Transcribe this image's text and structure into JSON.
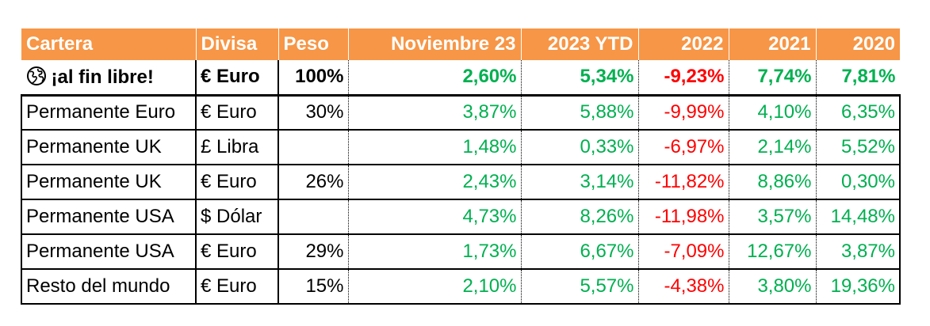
{
  "colors": {
    "header_bg": "#f79646",
    "positive": "#00b050",
    "negative": "#ff0000"
  },
  "header": {
    "cartera": "Cartera",
    "divisa": "Divisa",
    "peso": "Peso",
    "noviembre": "Noviembre 23",
    "ytd": "2023 YTD",
    "y2022": "2022",
    "y2021": "2021",
    "y2020": "2020"
  },
  "total": {
    "icon": "globe-icon",
    "cartera": "¡al fin libre!",
    "divisa": "€ Euro",
    "peso": "100%",
    "noviembre": "2,60%",
    "ytd": "5,34%",
    "y2022": "-9,23%",
    "y2021": "7,74%",
    "y2020": "7,81%"
  },
  "rows": [
    {
      "cartera": "Permanente Euro",
      "divisa": "€ Euro",
      "peso": "30%",
      "noviembre": "3,87%",
      "ytd": "5,88%",
      "y2022": "-9,99%",
      "y2021": "4,10%",
      "y2020": "6,35%"
    },
    {
      "cartera": "Permanente UK",
      "divisa": "£ Libra",
      "peso": "",
      "noviembre": "1,48%",
      "ytd": "0,33%",
      "y2022": "-6,97%",
      "y2021": "2,14%",
      "y2020": "5,52%"
    },
    {
      "cartera": "Permanente UK",
      "divisa": "€ Euro",
      "peso": "26%",
      "noviembre": "2,43%",
      "ytd": "3,14%",
      "y2022": "-11,82%",
      "y2021": "8,86%",
      "y2020": "0,30%"
    },
    {
      "cartera": "Permanente USA",
      "divisa": "$ Dólar",
      "peso": "",
      "noviembre": "4,73%",
      "ytd": "8,26%",
      "y2022": "-11,98%",
      "y2021": "3,57%",
      "y2020": "14,48%"
    },
    {
      "cartera": "Permanente USA",
      "divisa": "€ Euro",
      "peso": "29%",
      "noviembre": "1,73%",
      "ytd": "6,67%",
      "y2022": "-7,09%",
      "y2021": "12,67%",
      "y2020": "3,87%"
    },
    {
      "cartera": "Resto del mundo",
      "divisa": "€ Euro",
      "peso": "15%",
      "noviembre": "2,10%",
      "ytd": "5,57%",
      "y2022": "-4,38%",
      "y2021": "3,80%",
      "y2020": "19,36%"
    }
  ]
}
